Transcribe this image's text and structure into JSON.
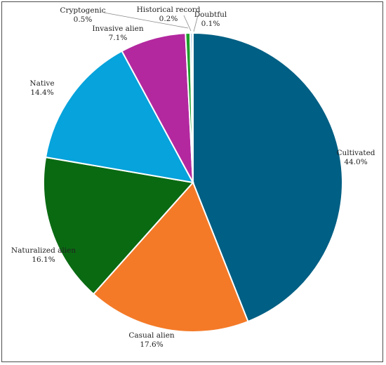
{
  "chart_data": {
    "type": "pie",
    "title": "",
    "slices": [
      {
        "label": "Cultivated",
        "value": 44.0,
        "value_label": "44.0%",
        "color": "#005f84"
      },
      {
        "label": "Casual alien",
        "value": 17.6,
        "value_label": "17.6%",
        "color": "#f47a28"
      },
      {
        "label": "Naturalized alien",
        "value": 16.1,
        "value_label": "16.1%",
        "color": "#0a6a12"
      },
      {
        "label": "Native",
        "value": 14.4,
        "value_label": "14.4%",
        "color": "#06a3dc"
      },
      {
        "label": "Invasive alien",
        "value": 7.1,
        "value_label": "7.1%",
        "color": "#b3289f"
      },
      {
        "label": "Cryptogenic",
        "value": 0.5,
        "value_label": "0.5%",
        "color": "#1c9f2a"
      },
      {
        "label": "Historical record",
        "value": 0.2,
        "value_label": "0.2%",
        "color": "#3a86c8"
      },
      {
        "label": "Doubtful",
        "value": 0.1,
        "value_label": "0.1%",
        "color": "#ff9a4d"
      }
    ],
    "start_angle": "12 o'clock",
    "direction": "clockwise",
    "legend": "none",
    "data_labels": "outside with leader lines"
  }
}
